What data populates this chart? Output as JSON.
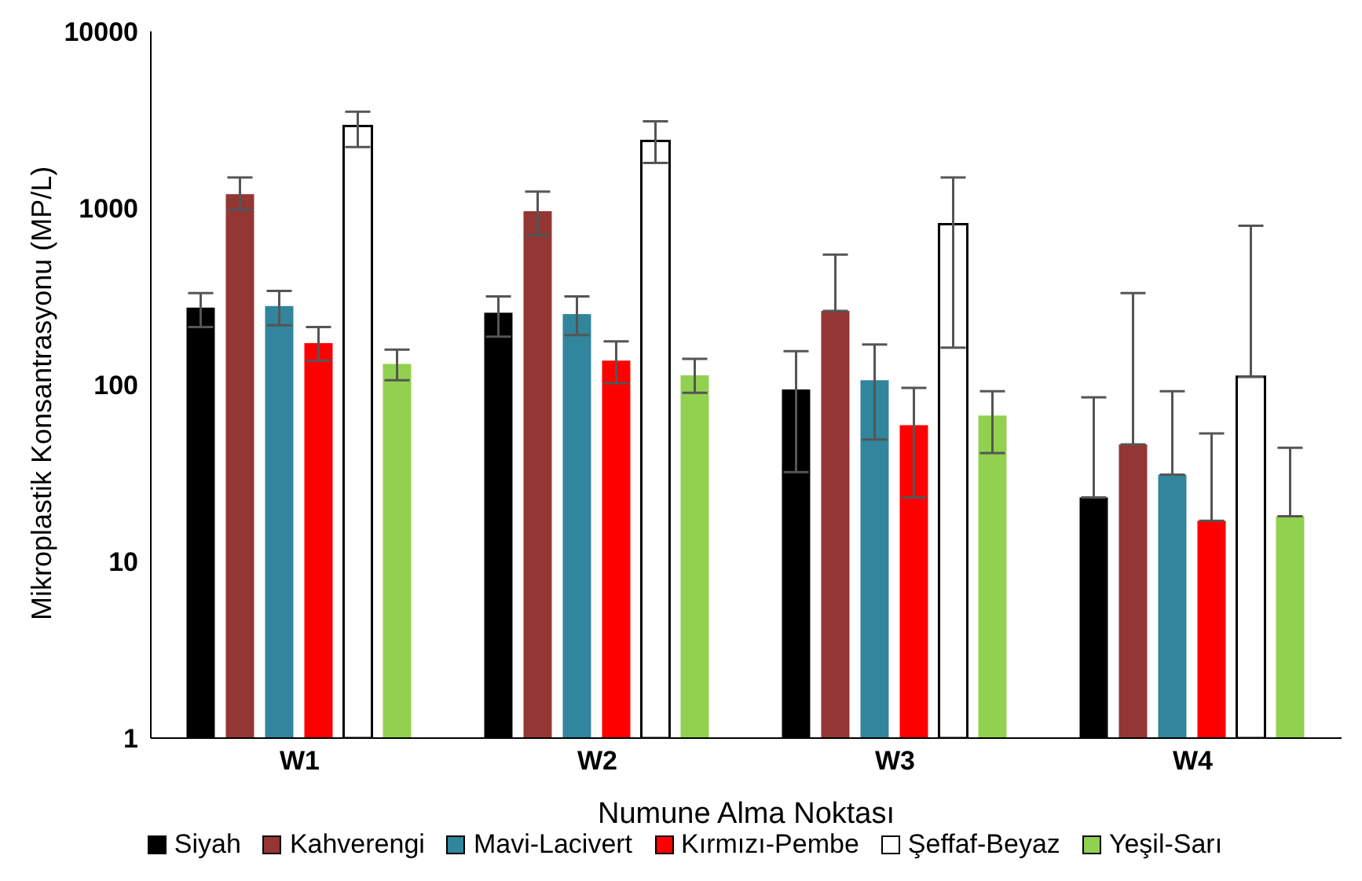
{
  "chart_data": {
    "type": "bar",
    "xlabel": "Numune Alma Noktası",
    "ylabel": "Mikroplastik Konsantrasyonu  (MP/L)",
    "categories": [
      "W1",
      "W2",
      "W3",
      "W4"
    ],
    "log": true,
    "ylim": [
      1,
      10000
    ],
    "yticks": [
      1,
      10,
      100,
      1000,
      10000
    ],
    "grid": false,
    "legend": "bottom",
    "series": [
      {
        "name": "Siyah",
        "color": "#000000",
        "values": [
          273,
          256,
          94,
          23
        ],
        "errors": [
          [
            212,
            330
          ],
          [
            187,
            316
          ],
          [
            32,
            155
          ],
          [
            23,
            85
          ]
        ]
      },
      {
        "name": "Kahverengi",
        "color": "#943634",
        "values": [
          1200,
          960,
          262,
          46
        ],
        "errors": [
          [
            980,
            1490
          ],
          [
            700,
            1240
          ],
          [
            262,
            545
          ],
          [
            46,
            330
          ]
        ]
      },
      {
        "name": "Mavi-Lacivert",
        "color": "#31859c",
        "values": [
          279,
          251,
          106,
          31
        ],
        "errors": [
          [
            217,
            340
          ],
          [
            191,
            316
          ],
          [
            49,
            169
          ],
          [
            31,
            92
          ]
        ]
      },
      {
        "name": "Kırmızı-Pembe",
        "color": "#ff0000",
        "values": [
          172,
          137,
          59,
          17
        ],
        "errors": [
          [
            137,
            212
          ],
          [
            102,
            176
          ],
          [
            23,
            96
          ],
          [
            17,
            53
          ]
        ]
      },
      {
        "name": "Şeffaf-Beyaz",
        "color": "#ffffff",
        "values": [
          2910,
          2400,
          810,
          111
        ],
        "errors": [
          [
            2215,
            3510
          ],
          [
            1800,
            3100
          ],
          [
            162,
            1490
          ],
          [
            111,
            795
          ]
        ]
      },
      {
        "name": "Yeşil-Sarı",
        "color": "#92d050",
        "values": [
          131,
          113,
          67,
          18
        ],
        "errors": [
          [
            106,
            158
          ],
          [
            90,
            140
          ],
          [
            41,
            92
          ],
          [
            18,
            44
          ]
        ]
      }
    ]
  }
}
